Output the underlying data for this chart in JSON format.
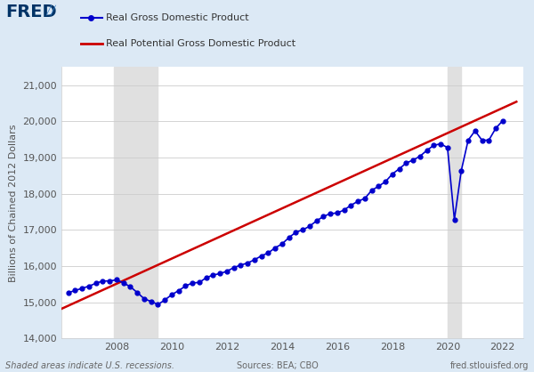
{
  "background_color": "#dce9f5",
  "plot_bg_color": "#ffffff",
  "recession_shadings": [
    {
      "start": 2007.917,
      "end": 2009.5
    },
    {
      "start": 2020.0,
      "end": 2020.5
    }
  ],
  "gdp_data": {
    "dates": [
      2006.25,
      2006.5,
      2006.75,
      2007.0,
      2007.25,
      2007.5,
      2007.75,
      2008.0,
      2008.25,
      2008.5,
      2008.75,
      2009.0,
      2009.25,
      2009.5,
      2009.75,
      2010.0,
      2010.25,
      2010.5,
      2010.75,
      2011.0,
      2011.25,
      2011.5,
      2011.75,
      2012.0,
      2012.25,
      2012.5,
      2012.75,
      2013.0,
      2013.25,
      2013.5,
      2013.75,
      2014.0,
      2014.25,
      2014.5,
      2014.75,
      2015.0,
      2015.25,
      2015.5,
      2015.75,
      2016.0,
      2016.25,
      2016.5,
      2016.75,
      2017.0,
      2017.25,
      2017.5,
      2017.75,
      2018.0,
      2018.25,
      2018.5,
      2018.75,
      2019.0,
      2019.25,
      2019.5,
      2019.75,
      2020.0,
      2020.25,
      2020.5,
      2020.75,
      2021.0,
      2021.25,
      2021.5,
      2021.75,
      2022.0
    ],
    "values": [
      15268,
      15326,
      15388,
      15446,
      15526,
      15588,
      15590,
      15620,
      15536,
      15430,
      15270,
      15100,
      15022,
      14942,
      15064,
      15212,
      15322,
      15450,
      15536,
      15548,
      15679,
      15754,
      15793,
      15858,
      15958,
      16028,
      16085,
      16175,
      16282,
      16365,
      16504,
      16612,
      16788,
      16934,
      17003,
      17100,
      17250,
      17370,
      17450,
      17467,
      17549,
      17681,
      17790,
      17867,
      18091,
      18206,
      18332,
      18543,
      18687,
      18845,
      18929,
      19032,
      19196,
      19334,
      19378,
      19272,
      17285,
      18638,
      19478,
      19736,
      19477,
      19478,
      19806,
      20015
    ],
    "color": "#0000cc",
    "marker": "o",
    "marker_size": 3.5,
    "linewidth": 1.2
  },
  "potential_gdp_data": {
    "dates": [
      2006.0,
      2022.5
    ],
    "values": [
      14820,
      20540
    ],
    "color": "#cc0000",
    "linewidth": 1.8
  },
  "ylim": [
    14000,
    21500
  ],
  "xlim": [
    2006.0,
    2022.75
  ],
  "yticks": [
    14000,
    15000,
    16000,
    17000,
    18000,
    19000,
    20000,
    21000
  ],
  "xticks": [
    2008,
    2010,
    2012,
    2014,
    2016,
    2018,
    2020,
    2022
  ],
  "ylabel": "Billions of Chained 2012 Dollars",
  "legend_gdp": "Real Gross Domestic Product",
  "legend_potential": "Real Potential Gross Domestic Product",
  "source_text": "Sources: BEA; CBO",
  "fred_text": "fred.stlouisfed.org",
  "shaded_text": "Shaded areas indicate U.S. recessions.",
  "recession_shade_color": "#e0e0e0",
  "tick_color": "#555555",
  "tick_fontsize": 8,
  "axis_label_fontsize": 8,
  "legend_fontsize": 8,
  "footer_fontsize": 7
}
